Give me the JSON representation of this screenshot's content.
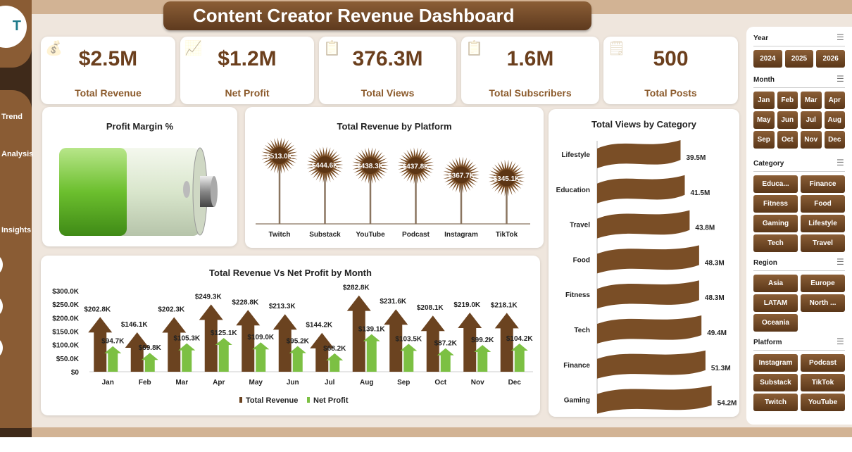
{
  "header": {
    "title": "Content Creator Revenue Dashboard",
    "logo_text": "T"
  },
  "sidebar": {
    "items": [
      {
        "label": "Trend"
      },
      {
        "label": "Analysis"
      },
      {
        "label": "Insights"
      }
    ]
  },
  "kpis": [
    {
      "value": "$2.5M",
      "label": "Total Revenue",
      "icon": "money-icon"
    },
    {
      "value": "$1.2M",
      "label": "Net Profit",
      "icon": "growth-chart-icon"
    },
    {
      "value": "376.3M",
      "label": "Total Views",
      "icon": "report-icon"
    },
    {
      "value": "1.6M",
      "label": "Total Subscribers",
      "icon": "clipboard-icon"
    },
    {
      "value": "500",
      "label": "Total Posts",
      "icon": "checklist-icon"
    }
  ],
  "profit_margin": {
    "title": "Profit Margin %",
    "fill_percent": 48
  },
  "slicers": {
    "year": {
      "title": "Year",
      "items": [
        "2024",
        "2025",
        "2026"
      ]
    },
    "month": {
      "title": "Month",
      "items": [
        "Jan",
        "Feb",
        "Mar",
        "Apr",
        "May",
        "Jun",
        "Jul",
        "Aug",
        "Sep",
        "Oct",
        "Nov",
        "Dec"
      ]
    },
    "category": {
      "title": "Category",
      "items": [
        "Educa...",
        "Finance",
        "Fitness",
        "Food",
        "Gaming",
        "Lifestyle",
        "Tech",
        "Travel"
      ]
    },
    "region": {
      "title": "Region",
      "items": [
        "Asia",
        "Europe",
        "LATAM",
        "North ...",
        "Oceania"
      ]
    },
    "platform": {
      "title": "Platform",
      "items": [
        "Instagram",
        "Podcast",
        "Substack",
        "TikTok",
        "Twitch",
        "YouTube"
      ]
    }
  },
  "chart_data": [
    {
      "type": "bar",
      "title": "Total Revenue  by Platform",
      "categories": [
        "Twitch",
        "Substack",
        "YouTube",
        "Podcast",
        "Instagram",
        "TikTok"
      ],
      "values": [
        513.0,
        444.6,
        438.3,
        437.8,
        367.7,
        345.1
      ],
      "labels": [
        "$513.0K",
        "$444.6K",
        "$438.3K",
        "$437.8K",
        "$367.7K",
        "$345.1K"
      ],
      "color": "#7a4e26"
    },
    {
      "type": "bar",
      "orientation": "horizontal",
      "title": "Total Views by Category",
      "categories": [
        "Lifestyle",
        "Education",
        "Travel",
        "Food",
        "Fitness",
        "Tech",
        "Finance",
        "Gaming"
      ],
      "values": [
        39.5,
        41.5,
        43.8,
        48.3,
        48.3,
        49.4,
        51.3,
        54.2
      ],
      "labels": [
        "39.5M",
        "41.5M",
        "43.8M",
        "48.3M",
        "48.3M",
        "49.4M",
        "51.3M",
        "54.2M"
      ],
      "color": "#7a4e26"
    },
    {
      "type": "bar",
      "title": "Total Revenue Vs Net Profit  by Month",
      "categories": [
        "Jan",
        "Feb",
        "Mar",
        "Apr",
        "May",
        "Jun",
        "Jul",
        "Aug",
        "Sep",
        "Oct",
        "Nov",
        "Dec"
      ],
      "yticks": [
        "$0",
        "$50.0K",
        "$100.0K",
        "$150.0K",
        "$200.0K",
        "$250.0K",
        "$300.0K"
      ],
      "ylim": [
        0,
        300
      ],
      "legend": "bottom",
      "series": [
        {
          "name": "Total Revenue",
          "color": "#6b4320",
          "values": [
            202.8,
            146.1,
            202.3,
            249.3,
            228.8,
            213.3,
            144.2,
            282.8,
            231.6,
            208.1,
            219.0,
            218.1
          ],
          "labels": [
            "$202.8K",
            "$146.1K",
            "$202.3K",
            "$249.3K",
            "$228.8K",
            "$213.3K",
            "$144.2K",
            "$282.8K",
            "$231.6K",
            "$208.1K",
            "$219.0K",
            "$218.1K"
          ]
        },
        {
          "name": "Net Profit",
          "color": "#7cc043",
          "values": [
            94.7,
            69.8,
            105.3,
            125.1,
            109.0,
            95.2,
            68.2,
            139.1,
            103.5,
            87.2,
            99.2,
            104.2
          ],
          "labels": [
            "$94.7K",
            "$69.8K",
            "$105.3K",
            "$125.1K",
            "$109.0K",
            "$95.2K",
            "$68.2K",
            "$139.1K",
            "$103.5K",
            "$87.2K",
            "$99.2K",
            "$104.2K"
          ]
        }
      ]
    }
  ]
}
